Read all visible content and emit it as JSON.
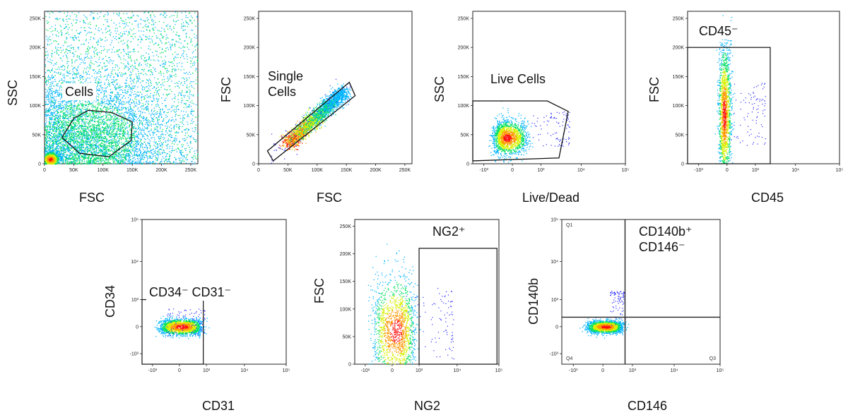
{
  "chart_data": [
    {
      "type": "scatter",
      "title": "",
      "xlabel": "FSC",
      "ylabel": "SSC",
      "xlim": [
        0,
        262144
      ],
      "ylim": [
        0,
        262144
      ],
      "x_scale": "linear",
      "y_scale": "linear",
      "x_ticks": [
        "0",
        "50K",
        "100K",
        "150K",
        "200K",
        "250K"
      ],
      "y_ticks": [
        "0",
        "50K",
        "100K",
        "150K",
        "200K",
        "250K"
      ],
      "gate": {
        "label": "Cells",
        "shape": "polygon",
        "points": [
          [
            30000,
            45000
          ],
          [
            50000,
            78000
          ],
          [
            75000,
            92000
          ],
          [
            115000,
            88000
          ],
          [
            150000,
            72000
          ],
          [
            148000,
            40000
          ],
          [
            110000,
            12000
          ],
          [
            60000,
            18000
          ]
        ]
      },
      "populations": [
        {
          "name": "bulk",
          "center": [
            75000,
            45000
          ],
          "spread": [
            55000,
            35000
          ],
          "density": "high"
        },
        {
          "name": "debris",
          "center": [
            10000,
            8000
          ],
          "spread": [
            8000,
            7000
          ],
          "density": "very high"
        }
      ]
    },
    {
      "type": "scatter",
      "title": "",
      "xlabel": "FSC",
      "ylabel": "FSC",
      "xlim": [
        0,
        262144
      ],
      "ylim": [
        0,
        262144
      ],
      "x_scale": "linear",
      "y_scale": "linear",
      "x_ticks": [
        "0",
        "50K",
        "100K",
        "150K",
        "200K",
        "250K"
      ],
      "y_ticks": [
        "0",
        "50K",
        "100K",
        "150K",
        "200K",
        "250K"
      ],
      "gate": {
        "label_lines": [
          "Single",
          "Cells"
        ],
        "shape": "polygon",
        "points": [
          [
            15000,
            22000
          ],
          [
            155000,
            140000
          ],
          [
            165000,
            117000
          ],
          [
            25000,
            5000
          ]
        ]
      },
      "populations": [
        {
          "name": "singlets",
          "center": [
            50000,
            35000
          ],
          "diagonal_to": [
            145000,
            125000
          ],
          "density": "high"
        }
      ]
    },
    {
      "type": "scatter",
      "title": "",
      "xlabel": "Live/Dead",
      "ylabel": "SSC",
      "xlim": [
        -2000,
        100000
      ],
      "ylim": [
        0,
        262144
      ],
      "x_scale": "biexponential",
      "y_scale": "linear",
      "x_ticks": [
        "-10³",
        "0",
        "10³",
        "10⁴",
        "10⁵"
      ],
      "y_ticks": [
        "0",
        "50K",
        "100K",
        "150K",
        "200K",
        "250K"
      ],
      "gate": {
        "label": "Live Cells",
        "shape": "polygon",
        "points": [
          [
            -2000,
            108000
          ],
          [
            1500,
            108000
          ],
          [
            5000,
            90000
          ],
          [
            3000,
            10000
          ],
          [
            -2000,
            5000
          ]
        ]
      },
      "populations": [
        {
          "name": "live",
          "center": [
            -100,
            45000
          ],
          "spread": [
            200,
            15000
          ],
          "density": "very high"
        }
      ]
    },
    {
      "type": "scatter",
      "title": "",
      "xlabel": "CD45",
      "ylabel": "FSC",
      "xlim": [
        -2000,
        100000
      ],
      "ylim": [
        0,
        262144
      ],
      "x_scale": "biexponential",
      "y_scale": "linear",
      "x_ticks": [
        "-10³",
        "0",
        "10³",
        "10⁴",
        "10⁵"
      ],
      "y_ticks": [
        "0",
        "50K",
        "100K",
        "150K",
        "200K",
        "250K"
      ],
      "gate": {
        "label": "CD45⁻",
        "shape": "rectangle",
        "x_range": [
          -2000,
          2500
        ],
        "y_range": [
          0,
          200000
        ]
      },
      "populations": [
        {
          "name": "CD45 negative",
          "center": [
            -50,
            85000
          ],
          "spread": [
            60,
            60000
          ],
          "density": "very high"
        }
      ]
    },
    {
      "type": "scatter",
      "title": "",
      "xlabel": "CD31",
      "ylabel": "CD34",
      "xlim": [
        -2000,
        100000
      ],
      "ylim": [
        -2000,
        100000
      ],
      "x_scale": "biexponential",
      "y_scale": "biexponential",
      "x_ticks": [
        "-10³",
        "0",
        "10³",
        "10⁴",
        "10⁵"
      ],
      "y_ticks": [
        "-10³",
        "0",
        "10³",
        "10⁴",
        "10⁵"
      ],
      "gate": {
        "label": "CD34⁻ CD31⁻",
        "shape": "rectangle",
        "x_range": [
          -2000,
          800
        ],
        "y_range": [
          -2000,
          1000
        ]
      },
      "populations": [
        {
          "name": "double negative",
          "center": [
            50,
            0
          ],
          "spread": [
            300,
            80
          ],
          "density": "very high"
        }
      ]
    },
    {
      "type": "scatter",
      "title": "",
      "xlabel": "NG2",
      "ylabel": "FSC",
      "xlim": [
        -2000,
        100000
      ],
      "ylim": [
        0,
        262144
      ],
      "x_scale": "biexponential",
      "y_scale": "linear",
      "x_ticks": [
        "-10³",
        "0",
        "10³",
        "10⁴",
        "10⁵"
      ],
      "y_ticks": [
        "0",
        "50K",
        "100K",
        "150K",
        "200K",
        "250K"
      ],
      "gate": {
        "label": "NG2⁺",
        "shape": "rectangle",
        "x_range": [
          1000,
          90000
        ],
        "y_range": [
          0,
          210000
        ]
      },
      "populations": [
        {
          "name": "main",
          "center": [
            80,
            60000
          ],
          "spread": [
            300,
            50000
          ],
          "density": "very high"
        }
      ]
    },
    {
      "type": "scatter",
      "title": "",
      "xlabel": "CD146",
      "ylabel": "CD140b",
      "xlim": [
        -2000,
        100000
      ],
      "ylim": [
        -2000,
        100000
      ],
      "x_scale": "biexponential",
      "y_scale": "biexponential",
      "x_ticks": [
        "-10³",
        "0",
        "10³",
        "10⁴",
        "10⁵"
      ],
      "y_ticks": [
        "-10³",
        "0",
        "10³",
        "10⁴",
        "10⁵"
      ],
      "quadrants": {
        "x_split": 600,
        "y_split": 200,
        "labels": [
          "Q1",
          "Q3",
          "Q4"
        ]
      },
      "gate": {
        "label_lines": [
          "CD140b⁺",
          "CD146⁻"
        ]
      },
      "populations": [
        {
          "name": "main",
          "center": [
            50,
            0
          ],
          "spread": [
            200,
            60
          ],
          "density": "very high"
        }
      ]
    }
  ]
}
